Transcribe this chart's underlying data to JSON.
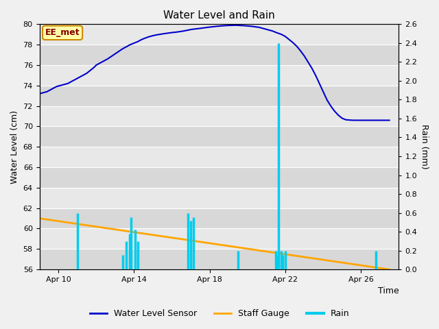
{
  "title": "Water Level and Rain",
  "xlabel": "Time",
  "ylabel_left": "Water Level (cm)",
  "ylabel_right": "Rain (mm)",
  "fig_bg_color": "#f0f0f0",
  "plot_bg_light": "#e8e8e8",
  "plot_bg_dark": "#d8d8d8",
  "water_level_color": "#0000cc",
  "staff_gauge_color": "#ffa500",
  "rain_color": "#00ccee",
  "annotation_text": "EE_met",
  "annotation_bg": "#ffffaa",
  "annotation_border": "#cc8800",
  "annotation_text_color": "#880000",
  "legend_labels": [
    "Water Level Sensor",
    "Staff Gauge",
    "Rain"
  ],
  "ylim_left": [
    56,
    80
  ],
  "ylim_right": [
    0.0,
    2.6
  ],
  "yticks_left": [
    56,
    58,
    60,
    62,
    64,
    66,
    68,
    70,
    72,
    74,
    76,
    78,
    80
  ],
  "yticks_right": [
    0.0,
    0.2,
    0.4,
    0.6,
    0.8,
    1.0,
    1.2,
    1.4,
    1.6,
    1.8,
    2.0,
    2.2,
    2.4,
    2.6
  ],
  "start_day": 9.0,
  "end_day": 28.0,
  "xtick_days": [
    10,
    14,
    18,
    22,
    26
  ],
  "xtick_labels": [
    "Apr 10",
    "Apr 14",
    "Apr 18",
    "Apr 22",
    "Apr 26"
  ],
  "water_level_dates": [
    9.0,
    9.1,
    9.2,
    9.3,
    9.4,
    9.5,
    9.6,
    9.7,
    9.8,
    9.9,
    10.0,
    10.1,
    10.2,
    10.3,
    10.4,
    10.5,
    10.6,
    10.7,
    10.8,
    10.9,
    11.0,
    11.1,
    11.2,
    11.3,
    11.4,
    11.5,
    11.6,
    11.7,
    11.8,
    11.9,
    12.0,
    12.2,
    12.4,
    12.6,
    12.8,
    13.0,
    13.2,
    13.4,
    13.6,
    13.8,
    14.0,
    14.2,
    14.4,
    14.6,
    14.8,
    15.0,
    15.2,
    15.4,
    15.6,
    15.8,
    16.0,
    16.2,
    16.4,
    16.6,
    16.8,
    17.0,
    17.2,
    17.4,
    17.6,
    17.8,
    18.0,
    18.2,
    18.4,
    18.6,
    18.8,
    19.0,
    19.2,
    19.4,
    19.6,
    19.8,
    20.0,
    20.2,
    20.4,
    20.6,
    20.8,
    21.0,
    21.15,
    21.3,
    21.5,
    21.65,
    21.8,
    22.0,
    22.2,
    22.4,
    22.6,
    22.8,
    23.0,
    23.2,
    23.4,
    23.6,
    23.8,
    24.0,
    24.2,
    24.4,
    24.6,
    24.8,
    25.0,
    25.2,
    25.4,
    25.6,
    25.8,
    26.0,
    26.2,
    26.4,
    26.6,
    26.8,
    27.0,
    27.2,
    27.4,
    27.5
  ],
  "water_level_values": [
    73.2,
    73.25,
    73.3,
    73.35,
    73.4,
    73.5,
    73.6,
    73.7,
    73.8,
    73.9,
    73.95,
    74.0,
    74.05,
    74.1,
    74.15,
    74.2,
    74.3,
    74.4,
    74.5,
    74.6,
    74.7,
    74.8,
    74.9,
    75.0,
    75.1,
    75.2,
    75.35,
    75.5,
    75.65,
    75.8,
    76.0,
    76.2,
    76.4,
    76.6,
    76.85,
    77.1,
    77.35,
    77.6,
    77.8,
    78.0,
    78.15,
    78.3,
    78.5,
    78.65,
    78.78,
    78.88,
    78.96,
    79.02,
    79.08,
    79.13,
    79.18,
    79.22,
    79.27,
    79.33,
    79.4,
    79.48,
    79.53,
    79.57,
    79.62,
    79.67,
    79.72,
    79.76,
    79.8,
    79.83,
    79.86,
    79.88,
    79.89,
    79.9,
    79.88,
    79.86,
    79.83,
    79.8,
    79.75,
    79.7,
    79.6,
    79.5,
    79.42,
    79.35,
    79.2,
    79.1,
    79.0,
    78.8,
    78.5,
    78.2,
    77.85,
    77.4,
    76.9,
    76.3,
    75.7,
    75.0,
    74.2,
    73.4,
    72.6,
    72.0,
    71.5,
    71.1,
    70.8,
    70.65,
    70.62,
    70.6,
    70.6,
    70.6,
    70.6,
    70.6,
    70.6,
    70.6,
    70.6,
    70.6,
    70.6,
    70.6
  ],
  "staff_gauge_dates": [
    9.0,
    27.5
  ],
  "staff_gauge_values": [
    61.0,
    56.0
  ],
  "rain_events": [
    {
      "x": 11.0,
      "height": 0.6
    },
    {
      "x": 13.4,
      "height": 0.15
    },
    {
      "x": 13.6,
      "height": 0.3
    },
    {
      "x": 13.75,
      "height": 0.38
    },
    {
      "x": 13.85,
      "height": 0.55
    },
    {
      "x": 14.05,
      "height": 0.42
    },
    {
      "x": 14.2,
      "height": 0.3
    },
    {
      "x": 16.85,
      "height": 0.6
    },
    {
      "x": 17.0,
      "height": 0.52
    },
    {
      "x": 17.15,
      "height": 0.55
    },
    {
      "x": 19.5,
      "height": 0.2
    },
    {
      "x": 21.5,
      "height": 0.2
    },
    {
      "x": 21.6,
      "height": 0.15
    },
    {
      "x": 21.65,
      "height": 2.4
    },
    {
      "x": 21.8,
      "height": 0.2
    },
    {
      "x": 21.85,
      "height": 0.15
    },
    {
      "x": 22.0,
      "height": 0.2
    },
    {
      "x": 26.8,
      "height": 0.2
    }
  ]
}
